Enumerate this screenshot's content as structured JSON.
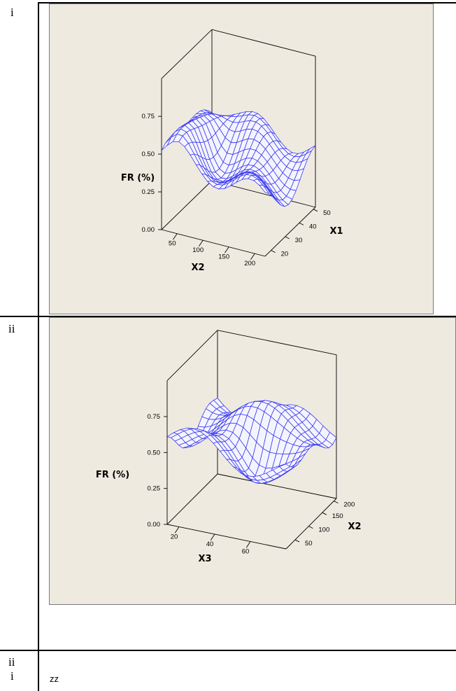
{
  "rows": [
    {
      "label": "i"
    },
    {
      "label": "ii"
    },
    {
      "label_lines": [
        "ii",
        "i"
      ]
    }
  ],
  "footer_text": "zz",
  "chart_data": [
    {
      "type": "surface",
      "zlabel": "FR (%)",
      "xlabel": "X2",
      "ylabel": "X1",
      "z_ticks": [
        "0.00",
        "0.25",
        "0.50",
        "0.75"
      ],
      "x_ticks": [
        "50",
        "100",
        "150",
        "200"
      ],
      "y_ticks": [
        "20",
        "30",
        "40",
        "50"
      ],
      "zlim": [
        0,
        1
      ],
      "surface_color": "#3c3cf0",
      "grid_rows": 13,
      "grid_cols": 18
    },
    {
      "type": "surface",
      "zlabel": "FR (%)",
      "xlabel": "X3",
      "ylabel": "X2",
      "z_ticks": [
        "0.00",
        "0.25",
        "0.50",
        "0.75"
      ],
      "x_ticks": [
        "20",
        "40",
        "60"
      ],
      "y_ticks": [
        "50",
        "100",
        "150",
        "200"
      ],
      "zlim": [
        0,
        1
      ],
      "surface_color": "#3c3cf0",
      "grid_rows": 13,
      "grid_cols": 18
    }
  ]
}
